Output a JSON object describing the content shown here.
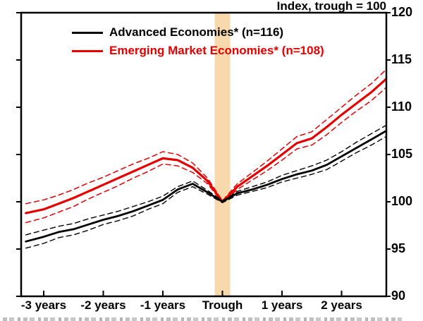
{
  "title": "Index, trough = 100",
  "legend": [
    {
      "label": "Advanced Economies* (n=116)",
      "color": "#000000"
    },
    {
      "label": "Emerging Market Economies* (n=108)",
      "color": "#e60000"
    }
  ],
  "chart_data": {
    "type": "line",
    "title": "Index, trough = 100",
    "x_unit": "years relative to trough",
    "ylim": [
      90,
      120
    ],
    "xlim": [
      -3.38,
      2.75
    ],
    "grid": false,
    "legend_position": "top-left",
    "y_tick_values": [
      90,
      95,
      100,
      105,
      110,
      115,
      120
    ],
    "x_tick_values": [
      -3,
      -2,
      -1,
      0,
      1,
      2
    ],
    "x_tick_labels": [
      "-3 years",
      "-2 years",
      "-1 years",
      "Trough",
      "1 years",
      "2 years"
    ],
    "trough_band": {
      "center_x": 0,
      "half_width": 0.13,
      "color": "#f7d9ab"
    },
    "x": [
      -3.3,
      -3.0,
      -2.75,
      -2.5,
      -2.25,
      -2.0,
      -1.75,
      -1.5,
      -1.25,
      -1.0,
      -0.75,
      -0.5,
      -0.25,
      0,
      0.25,
      0.5,
      0.75,
      1.0,
      1.25,
      1.5,
      1.75,
      2.0,
      2.25,
      2.5,
      2.75
    ],
    "series": [
      {
        "key": "emerging-upper-band",
        "name": "Emerging Market Economies upper band",
        "color": "#e60000",
        "dash": "dashed",
        "width": 1.5,
        "values": [
          99.8,
          100.2,
          100.7,
          101.3,
          102.0,
          102.6,
          103.3,
          104.0,
          104.6,
          105.3,
          105.0,
          104.1,
          102.5,
          100.1,
          101.9,
          103.1,
          104.3,
          105.6,
          106.9,
          107.4,
          108.7,
          110.0,
          111.3,
          112.5,
          114.0
        ]
      },
      {
        "key": "emerging-lower-band",
        "name": "Emerging Market Economies lower band",
        "color": "#e60000",
        "dash": "dashed",
        "width": 1.5,
        "values": [
          97.8,
          98.3,
          98.9,
          99.5,
          100.3,
          101.0,
          101.7,
          102.5,
          103.2,
          104.0,
          103.8,
          103.1,
          101.9,
          99.9,
          101.3,
          102.3,
          103.3,
          104.4,
          105.6,
          106.0,
          107.1,
          108.4,
          109.6,
          110.7,
          112.1
        ]
      },
      {
        "key": "emerging-solid",
        "name": "Emerging Market Economies* (n=108)",
        "color": "#e60000",
        "dash": "none",
        "width": 3.2,
        "values": [
          98.8,
          99.2,
          99.8,
          100.4,
          101.1,
          101.8,
          102.5,
          103.2,
          103.9,
          104.6,
          104.4,
          103.6,
          102.2,
          100.0,
          101.6,
          102.7,
          103.8,
          105.0,
          106.2,
          106.7,
          107.9,
          109.2,
          110.4,
          111.6,
          113.0
        ]
      },
      {
        "key": "advanced-upper-band",
        "name": "Advanced Economies upper band",
        "color": "#000000",
        "dash": "dashed",
        "width": 1.4,
        "values": [
          96.5,
          97.0,
          97.4,
          97.7,
          98.2,
          98.6,
          99.0,
          99.5,
          100.0,
          100.6,
          101.6,
          102.2,
          101.2,
          100.1,
          101.1,
          101.6,
          102.1,
          102.8,
          103.3,
          103.8,
          104.4,
          105.3,
          106.3,
          107.2,
          108.1
        ]
      },
      {
        "key": "advanced-lower-band",
        "name": "Advanced Economies lower band",
        "color": "#000000",
        "dash": "dashed",
        "width": 1.4,
        "values": [
          95.1,
          95.6,
          96.2,
          96.5,
          97.0,
          97.6,
          98.0,
          98.5,
          99.2,
          99.8,
          101.0,
          101.6,
          100.8,
          99.9,
          100.7,
          101.1,
          101.5,
          102.1,
          102.5,
          102.9,
          103.4,
          104.3,
          105.2,
          106.0,
          106.9
        ]
      },
      {
        "key": "advanced-solid",
        "name": "Advanced Economies* (n=116)",
        "color": "#000000",
        "dash": "none",
        "width": 2.8,
        "values": [
          95.8,
          96.3,
          96.8,
          97.1,
          97.6,
          98.1,
          98.5,
          99.0,
          99.6,
          100.2,
          101.3,
          101.9,
          101.0,
          100.0,
          100.9,
          101.3,
          101.8,
          102.4,
          102.9,
          103.3,
          103.9,
          104.8,
          105.7,
          106.6,
          107.5
        ]
      }
    ]
  }
}
